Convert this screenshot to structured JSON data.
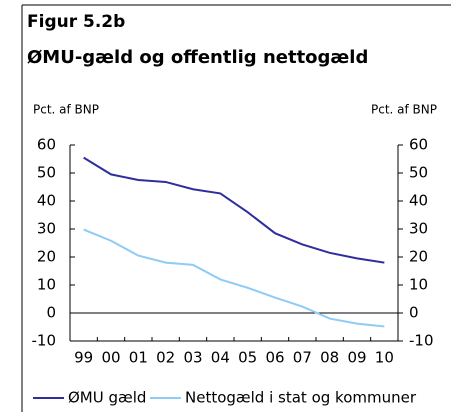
{
  "chart_data": {
    "type": "line",
    "figure_label": "Figur 5.2b",
    "title": "ØMU-gæld og offentlig nettogæld",
    "y_label": "Pct. af BNP",
    "y2_label": "Pct. af BNP",
    "categories": [
      "99",
      "00",
      "01",
      "02",
      "03",
      "04",
      "05",
      "06",
      "07",
      "08",
      "09",
      "10"
    ],
    "series": [
      {
        "name": "ØMU gæld",
        "color": "#2e2e9c",
        "values": [
          55.5,
          49.5,
          47.5,
          46.8,
          44.2,
          42.7,
          36,
          28.5,
          24.5,
          21.5,
          19.5,
          18
        ]
      },
      {
        "name": "Nettogæld i stat og kommuner",
        "color": "#8ecbf5",
        "values": [
          29.8,
          25.8,
          20.5,
          18,
          17.2,
          12,
          9,
          5.5,
          2.3,
          -2,
          -3.8,
          -4.8
        ]
      }
    ],
    "ylim": [
      -10,
      60
    ],
    "yticks": [
      -10,
      0,
      10,
      20,
      30,
      40,
      50,
      60
    ],
    "y2lim": [
      -10,
      60
    ],
    "y2ticks": [
      -10,
      0,
      10,
      20,
      30,
      40,
      50,
      60
    ]
  }
}
